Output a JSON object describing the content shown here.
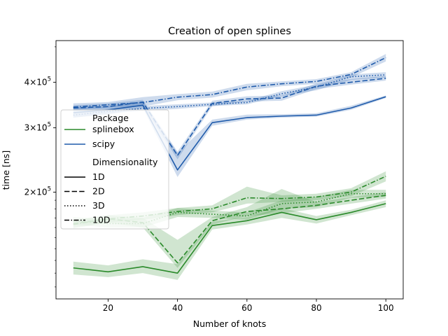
{
  "chart_data": {
    "type": "line",
    "title": "Creation of open splines",
    "xlabel": "Number of knots",
    "ylabel": "time [ns]",
    "xlim": [
      5,
      105
    ],
    "ylim": [
      102000,
      520000
    ],
    "yscale": "log",
    "x": [
      10,
      20,
      30,
      40,
      50,
      60,
      70,
      80,
      90,
      100
    ],
    "xticks": [
      {
        "v": 20,
        "label": "20"
      },
      {
        "v": 40,
        "label": "40"
      },
      {
        "v": 60,
        "label": "60"
      },
      {
        "v": 80,
        "label": "80"
      },
      {
        "v": 100,
        "label": "100"
      }
    ],
    "yticks": [
      {
        "v": 200000,
        "base": "2",
        "sep": "×",
        "exp_base": "10",
        "exp": "5"
      },
      {
        "v": 300000,
        "base": "3",
        "sep": "×",
        "exp_base": "10",
        "exp": "5"
      },
      {
        "v": 400000,
        "base": "4",
        "sep": "×",
        "exp_base": "10",
        "exp": "5"
      }
    ],
    "legend": {
      "placement": "center-left",
      "package_title": "Package",
      "packages": [
        {
          "label": "splinebox",
          "color": "#2a8a2a"
        },
        {
          "label": "scipy",
          "color": "#1f5bab"
        }
      ],
      "dim_title": "Dimensionality",
      "dims": [
        {
          "label": "1D",
          "dash": "solid"
        },
        {
          "label": "2D",
          "dash": "dashed"
        },
        {
          "label": "3D",
          "dash": "dotted"
        },
        {
          "label": "10D",
          "dash": "dashdot"
        }
      ]
    },
    "series": [
      {
        "package": "scipy",
        "dim": "1D",
        "color": "#1f5bab",
        "dash": "solid",
        "values": [
          330000,
          336000,
          346000,
          230000,
          310000,
          320000,
          323000,
          325000,
          340000,
          365000
        ],
        "lower": [
          320000,
          326000,
          340000,
          220000,
          304000,
          316000,
          320000,
          322000,
          336000,
          362000
        ],
        "upper": [
          342000,
          344000,
          354000,
          256000,
          316000,
          326000,
          327000,
          329000,
          345000,
          368000
        ]
      },
      {
        "package": "scipy",
        "dim": "2D",
        "color": "#1f5bab",
        "dash": "dashed",
        "values": [
          340000,
          343000,
          353000,
          252000,
          350000,
          360000,
          362000,
          390000,
          400000,
          410000
        ],
        "lower": [
          332000,
          336000,
          346000,
          246000,
          344000,
          354000,
          356000,
          383000,
          394000,
          404000
        ],
        "upper": [
          346000,
          350000,
          358000,
          258000,
          356000,
          366000,
          368000,
          397000,
          408000,
          416000
        ]
      },
      {
        "package": "scipy",
        "dim": "3D",
        "color": "#1f5bab",
        "dash": "dotted",
        "values": [
          325000,
          333000,
          339000,
          343000,
          348000,
          352000,
          372000,
          388000,
          414000,
          419000
        ],
        "lower": [
          320000,
          328000,
          334000,
          338000,
          344000,
          348000,
          366000,
          380000,
          406000,
          412000
        ],
        "upper": [
          331000,
          338000,
          344000,
          348000,
          352000,
          356000,
          378000,
          394000,
          420000,
          426000
        ]
      },
      {
        "package": "scipy",
        "dim": "10D",
        "color": "#1f5bab",
        "dash": "dashdot",
        "values": [
          342000,
          347000,
          352000,
          364000,
          370000,
          388000,
          396000,
          402000,
          420000,
          467000
        ],
        "lower": [
          336000,
          341000,
          343000,
          357000,
          363000,
          380000,
          390000,
          396000,
          412000,
          456000
        ],
        "upper": [
          350000,
          353000,
          364000,
          371000,
          377000,
          396000,
          402000,
          408000,
          426000,
          478000
        ]
      },
      {
        "package": "splinebox",
        "dim": "1D",
        "color": "#2a8a2a",
        "dash": "solid",
        "values": [
          124000,
          121000,
          125000,
          120000,
          162000,
          167000,
          176000,
          168000,
          176000,
          186000
        ],
        "lower": [
          119000,
          117000,
          120000,
          115000,
          158000,
          163000,
          170000,
          164000,
          173000,
          182000
        ],
        "upper": [
          129000,
          126000,
          131000,
          127000,
          166000,
          171000,
          181000,
          172000,
          179000,
          190000
        ]
      },
      {
        "package": "splinebox",
        "dim": "2D",
        "color": "#2a8a2a",
        "dash": "dashed",
        "values": [
          164000,
          169000,
          165000,
          128000,
          167000,
          177000,
          180000,
          184000,
          190000,
          196000
        ],
        "lower": [
          160000,
          165000,
          160000,
          124000,
          163000,
          172000,
          175000,
          180000,
          186000,
          192000
        ],
        "upper": [
          168000,
          173000,
          170000,
          148000,
          171000,
          182000,
          204000,
          188000,
          194000,
          200000
        ]
      },
      {
        "package": "splinebox",
        "dim": "3D",
        "color": "#2a8a2a",
        "dash": "dotted",
        "values": [
          167000,
          164000,
          164000,
          176000,
          174000,
          172000,
          186000,
          188000,
          198000,
          198000
        ],
        "lower": [
          163000,
          160000,
          160000,
          171000,
          170000,
          168000,
          180000,
          182000,
          193000,
          194000
        ],
        "upper": [
          171000,
          168000,
          170000,
          181000,
          178000,
          176000,
          190000,
          194000,
          203000,
          203000
        ]
      },
      {
        "package": "splinebox",
        "dim": "10D",
        "color": "#2a8a2a",
        "dash": "dashdot",
        "values": [
          163000,
          169000,
          172000,
          177000,
          180000,
          193000,
          192000,
          194000,
          200000,
          221000
        ],
        "lower": [
          159000,
          165000,
          168000,
          173000,
          176000,
          186000,
          188000,
          190000,
          195000,
          214000
        ],
        "upper": [
          167000,
          173000,
          176000,
          181000,
          184000,
          207000,
          196000,
          198000,
          205000,
          228000
        ]
      }
    ]
  }
}
